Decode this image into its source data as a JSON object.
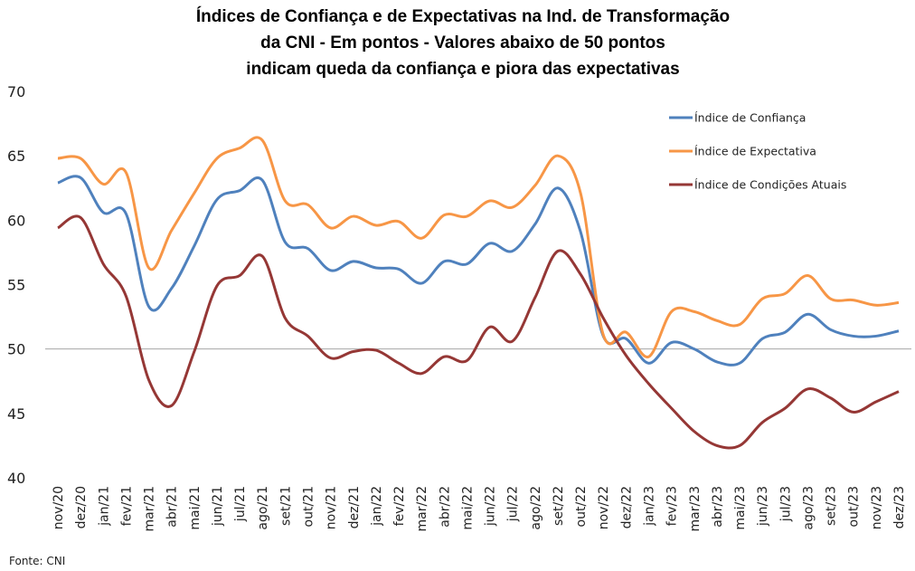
{
  "chart_data": {
    "type": "line",
    "title": [
      "Índices de Confiança e de Expectativas na Ind. de Transformação",
      "da CNI - Em pontos - Valores abaixo de 50 pontos",
      "indicam queda da confiança e piora das expectativas"
    ],
    "xlabel": "",
    "ylabel": "",
    "ylim": [
      40,
      70
    ],
    "yticks": [
      "40",
      "45",
      "50",
      "55",
      "60",
      "65",
      "70"
    ],
    "reference_line": 50,
    "legend_position": "top-right",
    "source": "Fonte: CNI",
    "categories": [
      "nov/20",
      "dez/20",
      "jan/21",
      "fev/21",
      "mar/21",
      "abr/21",
      "mai/21",
      "jun/21",
      "jul/21",
      "ago/21",
      "set/21",
      "out/21",
      "nov/21",
      "dez/21",
      "jan/22",
      "fev/22",
      "mar/22",
      "abr/22",
      "mai/22",
      "jun/22",
      "jul/22",
      "ago/22",
      "set/22",
      "out/22",
      "nov/22",
      "dez/22",
      "jan/23",
      "fev/23",
      "mar/23",
      "abr/23",
      "mai/23",
      "jun/23",
      "jul/23",
      "ago/23",
      "set/23",
      "out/23",
      "nov/23",
      "dez/23"
    ],
    "series": [
      {
        "name": "Índice de Confiança",
        "color": "#4F81BD",
        "values": [
          62.9,
          63.3,
          60.6,
          60.5,
          53.3,
          54.7,
          58.0,
          61.6,
          62.3,
          63.1,
          58.3,
          57.8,
          56.1,
          56.8,
          56.3,
          56.2,
          55.1,
          56.8,
          56.6,
          58.2,
          57.6,
          59.7,
          62.5,
          59.1,
          51.0,
          50.8,
          48.9,
          50.5,
          50.0,
          49.0,
          48.9,
          50.8,
          51.3,
          52.7,
          51.5,
          51.0,
          51.0,
          51.4
        ]
      },
      {
        "name": "Índice de Expectativa",
        "color": "#F79646",
        "values": [
          64.8,
          64.8,
          62.8,
          63.7,
          56.3,
          59.2,
          62.1,
          64.8,
          65.6,
          66.2,
          61.5,
          61.2,
          59.4,
          60.3,
          59.6,
          59.9,
          58.6,
          60.4,
          60.3,
          61.5,
          61.0,
          62.7,
          65.0,
          62.1,
          51.1,
          51.3,
          49.4,
          52.9,
          52.9,
          52.2,
          51.9,
          53.9,
          54.3,
          55.7,
          53.9,
          53.8,
          53.4,
          53.6
        ]
      },
      {
        "name": "Índice de Condições Atuais",
        "color": "#953735",
        "values": [
          59.4,
          60.2,
          56.6,
          54.1,
          47.6,
          45.6,
          49.8,
          54.9,
          55.7,
          57.2,
          52.4,
          51.0,
          49.3,
          49.8,
          49.9,
          48.9,
          48.1,
          49.4,
          49.1,
          51.7,
          50.6,
          54.0,
          57.6,
          55.8,
          52.4,
          49.5,
          47.3,
          45.4,
          43.6,
          42.5,
          42.5,
          44.3,
          45.4,
          46.9,
          46.2,
          45.1,
          45.9,
          46.7
        ]
      }
    ]
  }
}
